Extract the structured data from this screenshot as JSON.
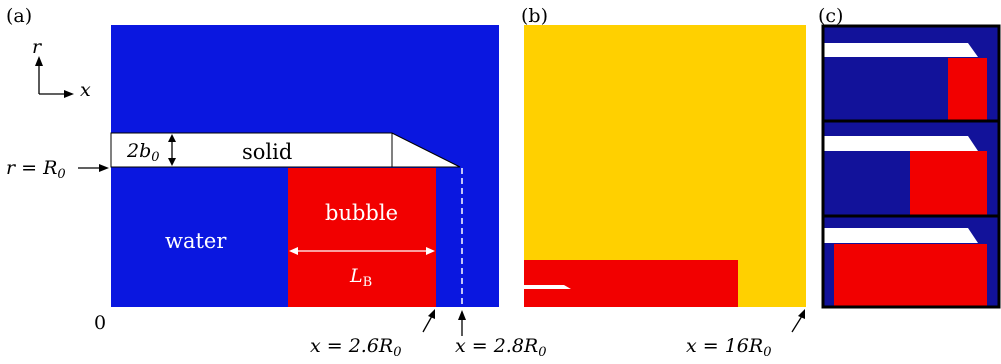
{
  "panels": {
    "a": {
      "label": "(a)",
      "axes": {
        "r": "r",
        "x": "x"
      },
      "annotations": {
        "r_eq": "r = R",
        "r_sub": "0",
        "thickness": "2b",
        "thickness_sub": "0",
        "solid": "solid",
        "bubble": "bubble",
        "water": "water",
        "length": "L",
        "length_sub": "B",
        "origin": "0",
        "x_bubble": "x = 2.6R",
        "x_bubble_sub": "0",
        "x_tip": "x = 2.8R",
        "x_tip_sub": "0"
      }
    },
    "b": {
      "label": "(b)",
      "annotations": {
        "x_domain": "x = 16R",
        "x_domain_sub": "0"
      }
    },
    "c": {
      "label": "(c)"
    }
  },
  "colors": {
    "water": "#0a17e0",
    "bubble": "#f20000",
    "solid": "#ffffff",
    "domain": "#ffd000",
    "dark_water": "#12129a",
    "frame": "#000000"
  }
}
